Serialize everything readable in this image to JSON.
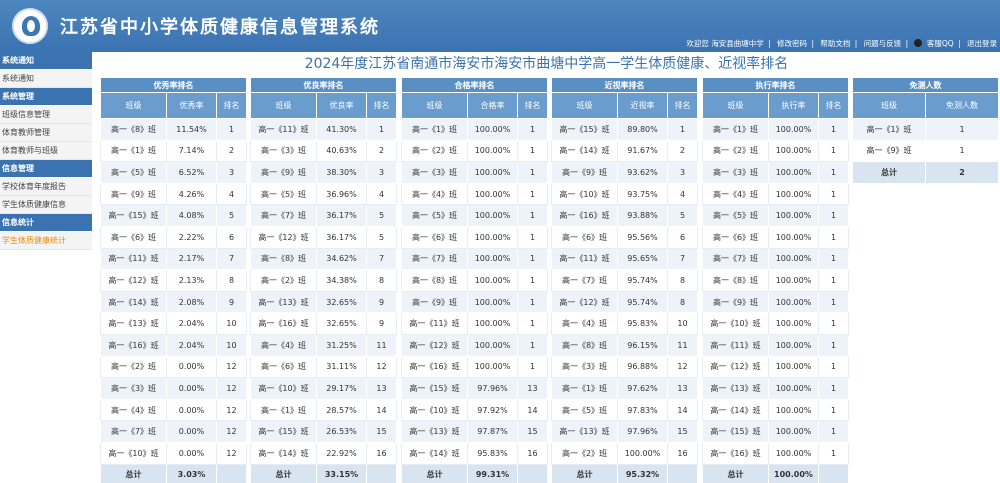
{
  "header": {
    "system_title": "江苏省中小学体质健康信息管理系统",
    "welcome": "欢迎您 海安县曲塘中学",
    "links": [
      "修改密码",
      "帮助文档",
      "问题与反馈",
      "客服QQ",
      "退出登录"
    ]
  },
  "sidebar": {
    "sections": [
      {
        "title": "系统通知",
        "items": [
          "系统通知"
        ]
      },
      {
        "title": "系统管理",
        "items": [
          "班级信息管理",
          "体育教师管理",
          "体育教师与班级"
        ]
      },
      {
        "title": "信息管理",
        "items": [
          "学校体育年度报告",
          "学生体质健康信息"
        ]
      },
      {
        "title": "信息统计",
        "items": [
          "学生体质健康统计"
        ]
      }
    ]
  },
  "page_title": "2024年度江苏省南通市海安市海安市曲塘中学高一学生体质健康、近视率排名",
  "columns_labels": {
    "class": "班级",
    "rank": "排名",
    "total": "总计"
  },
  "blocks": [
    {
      "title": "优秀率排名",
      "rate_label": "优秀率",
      "rows": [
        [
          "高一《8》班",
          "11.54%",
          "1"
        ],
        [
          "高一《1》班",
          "7.14%",
          "2"
        ],
        [
          "高一《5》班",
          "6.52%",
          "3"
        ],
        [
          "高一《9》班",
          "4.26%",
          "4"
        ],
        [
          "高一《15》班",
          "4.08%",
          "5"
        ],
        [
          "高一《6》班",
          "2.22%",
          "6"
        ],
        [
          "高一《11》班",
          "2.17%",
          "7"
        ],
        [
          "高一《12》班",
          "2.13%",
          "8"
        ],
        [
          "高一《14》班",
          "2.08%",
          "9"
        ],
        [
          "高一《13》班",
          "2.04%",
          "10"
        ],
        [
          "高一《16》班",
          "2.04%",
          "10"
        ],
        [
          "高一《2》班",
          "0.00%",
          "12"
        ],
        [
          "高一《3》班",
          "0.00%",
          "12"
        ],
        [
          "高一《4》班",
          "0.00%",
          "12"
        ],
        [
          "高一《7》班",
          "0.00%",
          "12"
        ],
        [
          "高一《10》班",
          "0.00%",
          "12"
        ]
      ],
      "total": "3.03%"
    },
    {
      "title": "优良率排名",
      "rate_label": "优良率",
      "rows": [
        [
          "高一《11》班",
          "41.30%",
          "1"
        ],
        [
          "高一《3》班",
          "40.63%",
          "2"
        ],
        [
          "高一《9》班",
          "38.30%",
          "3"
        ],
        [
          "高一《5》班",
          "36.96%",
          "4"
        ],
        [
          "高一《7》班",
          "36.17%",
          "5"
        ],
        [
          "高一《12》班",
          "36.17%",
          "5"
        ],
        [
          "高一《8》班",
          "34.62%",
          "7"
        ],
        [
          "高一《2》班",
          "34.38%",
          "8"
        ],
        [
          "高一《13》班",
          "32.65%",
          "9"
        ],
        [
          "高一《16》班",
          "32.65%",
          "9"
        ],
        [
          "高一《4》班",
          "31.25%",
          "11"
        ],
        [
          "高一《6》班",
          "31.11%",
          "12"
        ],
        [
          "高一《10》班",
          "29.17%",
          "13"
        ],
        [
          "高一《1》班",
          "28.57%",
          "14"
        ],
        [
          "高一《15》班",
          "26.53%",
          "15"
        ],
        [
          "高一《14》班",
          "22.92%",
          "16"
        ]
      ],
      "total": "33.15%"
    },
    {
      "title": "合格率排名",
      "rate_label": "合格率",
      "rows": [
        [
          "高一《1》班",
          "100.00%",
          "1"
        ],
        [
          "高一《2》班",
          "100.00%",
          "1"
        ],
        [
          "高一《3》班",
          "100.00%",
          "1"
        ],
        [
          "高一《4》班",
          "100.00%",
          "1"
        ],
        [
          "高一《5》班",
          "100.00%",
          "1"
        ],
        [
          "高一《6》班",
          "100.00%",
          "1"
        ],
        [
          "高一《7》班",
          "100.00%",
          "1"
        ],
        [
          "高一《8》班",
          "100.00%",
          "1"
        ],
        [
          "高一《9》班",
          "100.00%",
          "1"
        ],
        [
          "高一《11》班",
          "100.00%",
          "1"
        ],
        [
          "高一《12》班",
          "100.00%",
          "1"
        ],
        [
          "高一《16》班",
          "100.00%",
          "1"
        ],
        [
          "高一《15》班",
          "97.96%",
          "13"
        ],
        [
          "高一《10》班",
          "97.92%",
          "14"
        ],
        [
          "高一《13》班",
          "97.87%",
          "15"
        ],
        [
          "高一《14》班",
          "95.83%",
          "16"
        ]
      ],
      "total": "99.31%"
    },
    {
      "title": "近视率排名",
      "rate_label": "近视率",
      "rows": [
        [
          "高一《15》班",
          "89.80%",
          "1"
        ],
        [
          "高一《14》班",
          "91.67%",
          "2"
        ],
        [
          "高一《9》班",
          "93.62%",
          "3"
        ],
        [
          "高一《10》班",
          "93.75%",
          "4"
        ],
        [
          "高一《16》班",
          "93.88%",
          "5"
        ],
        [
          "高一《6》班",
          "95.56%",
          "6"
        ],
        [
          "高一《11》班",
          "95.65%",
          "7"
        ],
        [
          "高一《7》班",
          "95.74%",
          "8"
        ],
        [
          "高一《12》班",
          "95.74%",
          "8"
        ],
        [
          "高一《4》班",
          "95.83%",
          "10"
        ],
        [
          "高一《8》班",
          "96.15%",
          "11"
        ],
        [
          "高一《3》班",
          "96.88%",
          "12"
        ],
        [
          "高一《1》班",
          "97.62%",
          "13"
        ],
        [
          "高一《5》班",
          "97.83%",
          "14"
        ],
        [
          "高一《13》班",
          "97.96%",
          "15"
        ],
        [
          "高一《2》班",
          "100.00%",
          "16"
        ]
      ],
      "total": "95.32%"
    },
    {
      "title": "执行率排名",
      "rate_label": "执行率",
      "rows": [
        [
          "高一《1》班",
          "100.00%",
          "1"
        ],
        [
          "高一《2》班",
          "100.00%",
          "1"
        ],
        [
          "高一《3》班",
          "100.00%",
          "1"
        ],
        [
          "高一《4》班",
          "100.00%",
          "1"
        ],
        [
          "高一《5》班",
          "100.00%",
          "1"
        ],
        [
          "高一《6》班",
          "100.00%",
          "1"
        ],
        [
          "高一《7》班",
          "100.00%",
          "1"
        ],
        [
          "高一《8》班",
          "100.00%",
          "1"
        ],
        [
          "高一《9》班",
          "100.00%",
          "1"
        ],
        [
          "高一《10》班",
          "100.00%",
          "1"
        ],
        [
          "高一《11》班",
          "100.00%",
          "1"
        ],
        [
          "高一《12》班",
          "100.00%",
          "1"
        ],
        [
          "高一《13》班",
          "100.00%",
          "1"
        ],
        [
          "高一《14》班",
          "100.00%",
          "1"
        ],
        [
          "高一《15》班",
          "100.00%",
          "1"
        ],
        [
          "高一《16》班",
          "100.00%",
          "1"
        ]
      ],
      "total": "100.00%"
    }
  ],
  "exempt": {
    "title": "免测人数",
    "col_label": "免测人数",
    "rows": [
      [
        "高一《1》班",
        "1"
      ],
      [
        "高一《9》班",
        "1"
      ]
    ],
    "total": "2"
  }
}
